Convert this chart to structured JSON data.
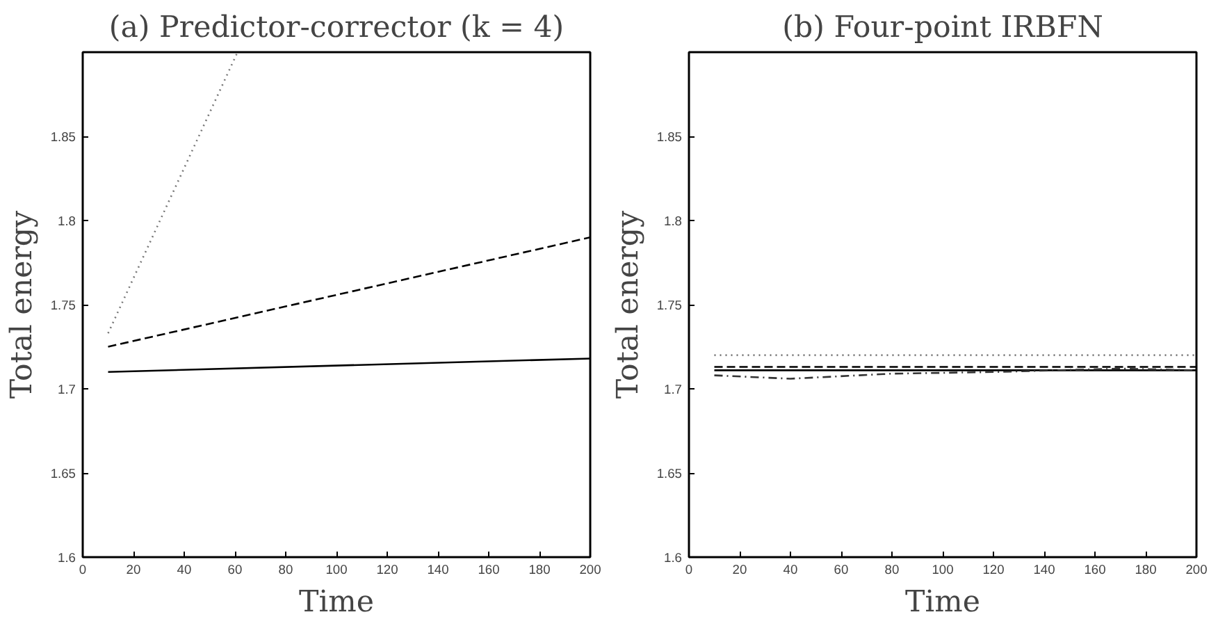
{
  "chart_data": [
    {
      "type": "line",
      "title": "(a) Predictor-corrector (k = 4)",
      "xlabel": "Time",
      "ylabel": "Total energy",
      "xlim": [
        0,
        200
      ],
      "ylim": [
        1.6,
        1.9
      ],
      "xticks": [
        0,
        20,
        40,
        60,
        80,
        100,
        120,
        140,
        160,
        180,
        200
      ],
      "yticks": [
        1.6,
        1.65,
        1.7,
        1.75,
        1.8,
        1.85
      ],
      "series": [
        {
          "color": "#777777",
          "line_style": "dotted",
          "x": [
            10,
            61
          ],
          "values": [
            1.733,
            1.9
          ]
        },
        {
          "color": "#000000",
          "line_style": "dashed",
          "x": [
            10,
            200
          ],
          "values": [
            1.725,
            1.79
          ]
        },
        {
          "color": "#000000",
          "line_style": "solid",
          "x": [
            10,
            200
          ],
          "values": [
            1.71,
            1.718
          ]
        }
      ]
    },
    {
      "type": "line",
      "title": "(b) Four-point IRBFN",
      "xlabel": "Time",
      "ylabel": "Total energy",
      "xlim": [
        0,
        200
      ],
      "ylim": [
        1.6,
        1.9
      ],
      "xticks": [
        0,
        20,
        40,
        60,
        80,
        100,
        120,
        140,
        160,
        180,
        200
      ],
      "yticks": [
        1.6,
        1.65,
        1.7,
        1.75,
        1.8,
        1.85
      ],
      "series": [
        {
          "color": "#777777",
          "line_style": "dotted",
          "x": [
            10,
            200
          ],
          "values": [
            1.72,
            1.72
          ]
        },
        {
          "color": "#000000",
          "line_style": "dashed",
          "x": [
            10,
            200
          ],
          "values": [
            1.713,
            1.713
          ]
        },
        {
          "color": "#000000",
          "line_style": "solid",
          "x": [
            10,
            200
          ],
          "values": [
            1.711,
            1.711
          ]
        },
        {
          "color": "#333333",
          "line_style": "dashdot",
          "x": [
            10,
            40,
            80,
            120,
            170,
            200
          ],
          "values": [
            1.708,
            1.706,
            1.709,
            1.71,
            1.712,
            1.711
          ]
        }
      ]
    }
  ]
}
